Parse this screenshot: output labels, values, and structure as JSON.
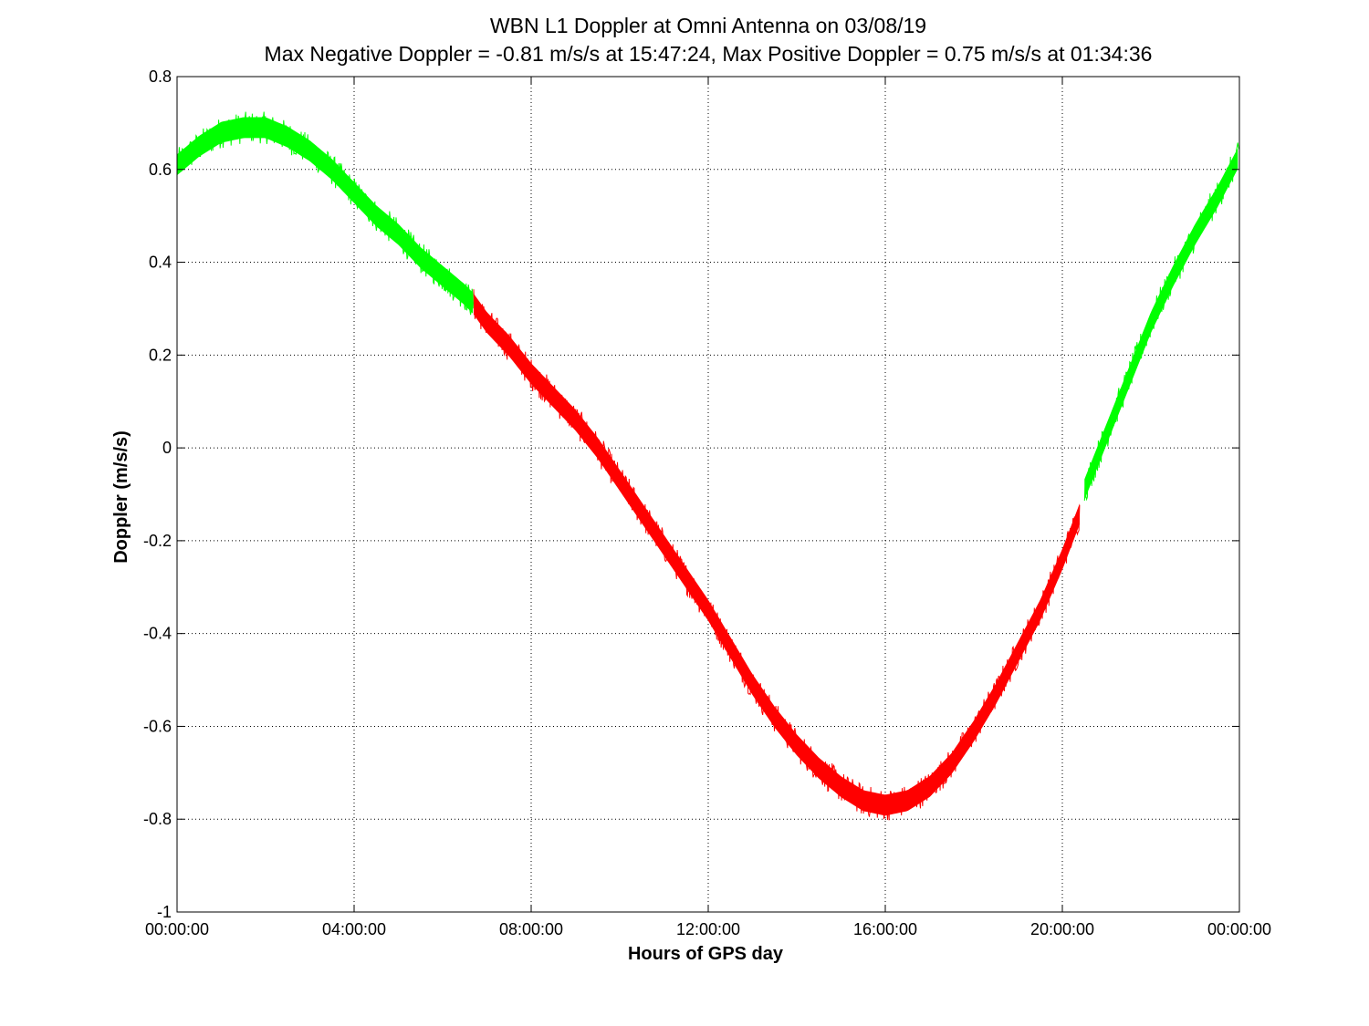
{
  "chart_data": {
    "type": "line",
    "title": "WBN  L1 Doppler at Omni Antenna on 03/08/19",
    "subtitle": "Max Negative Doppler = -0.81 m/s/s  at 15:47:24,   Max Positive Doppler = 0.75 m/s/s  at 01:34:36",
    "xlabel": "Hours of GPS day",
    "ylabel": "Doppler (m/s/s)",
    "xlim": [
      0,
      24
    ],
    "ylim": [
      -1,
      0.8
    ],
    "grid": true,
    "x_tick_values": [
      0,
      4,
      8,
      12,
      16,
      20,
      24
    ],
    "x_tick_labels": [
      "00:00:00",
      "04:00:00",
      "08:00:00",
      "12:00:00",
      "16:00:00",
      "20:00:00",
      "00:00:00"
    ],
    "y_tick_values": [
      0.8,
      0.6,
      0.4,
      0.2,
      0,
      -0.2,
      -0.4,
      -0.6,
      -0.8,
      -1
    ],
    "y_tick_labels": [
      "0.8",
      "0.6",
      "0.4",
      "0.2",
      "0",
      "-0.2",
      "-0.4",
      "-0.6",
      "-0.8",
      "-1"
    ],
    "band_halfwidth": 0.03,
    "series": [
      {
        "color": "#00ff00",
        "x": [
          0,
          0.5,
          1.0,
          1.5,
          2.0,
          2.5,
          3.0,
          3.5,
          4.0,
          4.5,
          5.0,
          5.5,
          6.0,
          6.5,
          6.7
        ],
        "y": [
          0.61,
          0.65,
          0.68,
          0.69,
          0.69,
          0.67,
          0.64,
          0.6,
          0.55,
          0.5,
          0.46,
          0.41,
          0.37,
          0.33,
          0.31
        ]
      },
      {
        "color": "#ff0000",
        "x": [
          6.7,
          7.0,
          7.5,
          8.0,
          8.5,
          9.0,
          9.5,
          10.0,
          10.5,
          11.0,
          11.5,
          12.0,
          12.5,
          13.0,
          13.5,
          14.0,
          14.5,
          15.0,
          15.5,
          16.0,
          16.5,
          17.0,
          17.5,
          18.0,
          18.5,
          19.0,
          19.5,
          20.0,
          20.4
        ],
        "y": [
          0.31,
          0.27,
          0.22,
          0.16,
          0.11,
          0.06,
          0.0,
          -0.07,
          -0.14,
          -0.21,
          -0.28,
          -0.35,
          -0.43,
          -0.51,
          -0.58,
          -0.64,
          -0.69,
          -0.73,
          -0.76,
          -0.77,
          -0.76,
          -0.73,
          -0.68,
          -0.61,
          -0.53,
          -0.44,
          -0.35,
          -0.24,
          -0.14
        ]
      },
      {
        "color": "#00ff00",
        "x": [
          20.5,
          21.0,
          21.5,
          22.0,
          22.5,
          23.0,
          23.5,
          24.0
        ],
        "y": [
          -0.09,
          0.03,
          0.15,
          0.27,
          0.37,
          0.46,
          0.54,
          0.63
        ]
      }
    ]
  }
}
